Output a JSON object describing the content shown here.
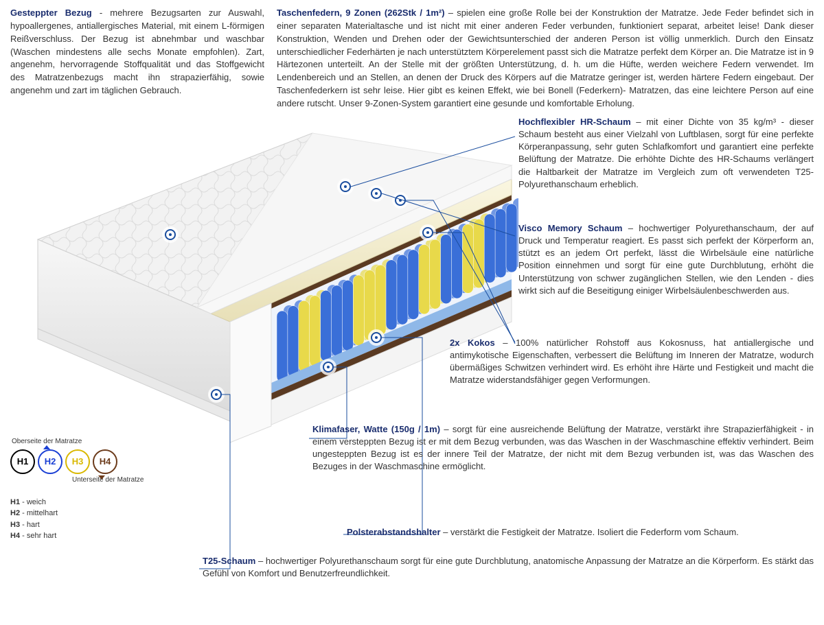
{
  "colors": {
    "heading": "#1a2d6e",
    "text": "#333333",
    "marker": "#1a4d9e",
    "h1": "#000000",
    "h2": "#1a3fd4",
    "h3": "#d9b800",
    "h4": "#6b3a1a",
    "spring_blue": "#3a6fd8",
    "spring_yellow": "#e8d94a",
    "foam_cream": "#f3edd0",
    "foam_blue": "#8fb8e8",
    "kokos": "#5a3a22",
    "cover": "#ececec"
  },
  "top": {
    "left": {
      "title": "Gesteppter Bezug",
      "sep": " - ",
      "body": "mehrere Bezugsarten zur Auswahl, hypoallergenes, antiallergisches Material, mit einem L-förmigen Reißverschluss. Der Bezug ist abnehmbar und waschbar (Waschen mindestens alle sechs Monate empfohlen). Zart, angenehm, hervorragende Stoffqualität und das Stoffgewicht des Matratzenbezugs macht ihn strapazierfähig, sowie angenehm und zart im täglichen Gebrauch."
    },
    "right": {
      "title": "Taschenfedern, 9 Zonen (262Stk / 1m²)",
      "sep": " – ",
      "body": "spielen eine große Rolle bei der Konstruktion der Matratze. Jede Feder befindet sich in einer separaten Materialtasche und ist nicht mit einer anderen Feder verbunden, funktioniert separat, arbeitet leise! Dank dieser Konstruktion, Wenden und Drehen oder der Gewichtsunterschied der anderen Person ist völlig unmerklich. Durch den Einsatz unterschiedlicher Federhärten je nach unterstütztem Körperelement passt sich die Matratze perfekt dem Körper an. Die Matratze ist in 9 Härtezonen unterteilt. An der Stelle mit der größten Unterstützung, d. h. um die Hüfte, werden weichere Federn verwendet. Im Lendenbereich und an Stellen, an denen der Druck des Körpers auf die Matratze geringer ist, werden härtere Federn eingebaut. Der Taschenfederkern ist sehr leise. Hier gibt es keinen Effekt, wie bei Bonell (Federkern)- Matratzen, das eine leichtere Person auf eine andere rutscht. Unser 9-Zonen-System garantiert eine gesunde und komfortable Erholung."
    }
  },
  "callouts": {
    "hr": {
      "title": "Hochflexibler HR-Schaum",
      "sep": " – ",
      "body": "mit einer Dichte von 35 kg/m³ - dieser Schaum besteht aus einer Vielzahl von Luftblasen, sorgt für eine perfekte Körperanpassung, sehr guten Schlafkomfort und garantiert eine perfekte Belüftung der Matratze. Die erhöhte Dichte des HR-Schaums verlängert die Haltbarkeit der Matratze im Vergleich zum oft verwendeten T25-Polyurethanschaum erheblich."
    },
    "visco": {
      "title": "Visco Memory Schaum",
      "sep": " – ",
      "body": "hochwertiger Polyurethanschaum, der auf Druck und Temperatur reagiert. Es passt sich perfekt der Körperform an, stützt es an jedem Ort perfekt, lässt die Wirbelsäule eine natürliche Position einnehmen und sorgt für eine gute Durchblutung, erhöht die Unterstützung von schwer zugänglichen Stellen, wie den Lenden - dies wirkt sich auf die Beseitigung einiger Wirbelsäulenbeschwerden aus."
    },
    "kokos": {
      "title": "2x Kokos",
      "sep": " – ",
      "body": "100% natürlicher Rohstoff aus Kokosnuss, hat antiallergische und antimykotische Eigenschaften, verbessert die Belüftung im Inneren der Matratze, wodurch übermäßiges Schwitzen verhindert wird. Es erhöht ihre Härte und Festigkeit und macht die Matratze widerstandsfähiger gegen Verformungen."
    },
    "klima": {
      "title": "Klimafaser, Watte (150g / 1m)",
      "sep": " – ",
      "body": "sorgt für eine ausreichende Belüftung der Matratze, verstärkt ihre Strapazierfähigkeit - in einem versteppten Bezug ist er mit dem Bezug verbunden, was das Waschen in der Waschmaschine effektiv verhindert. Beim ungesteppten Bezug ist es der innere Teil der Matratze, der nicht mit dem Bezug verbunden ist, was das Waschen des Bezuges in der Waschmaschine ermöglicht."
    },
    "polster": {
      "title": "Polsterabstandshalter",
      "sep": " – ",
      "body": "verstärkt die Festigkeit der Matratze. Isoliert die Federform vom Schaum."
    },
    "t25": {
      "title": "T25-Schaum",
      "sep": " – ",
      "body": "hochwertiger Polyurethanschaum sorgt für eine gute Durchblutung, anatomische Anpassung der Matratze an die Körperform. Es stärkt das Gefühl von Komfort und Benutzerfreundlichkeit."
    }
  },
  "legend": {
    "top_label": "Oberseite der Matratze",
    "bot_label": "Unterseite der Matratze",
    "items": [
      {
        "code": "H1",
        "label": "weich"
      },
      {
        "code": "H2",
        "label": "mittelhart"
      },
      {
        "code": "H3",
        "label": "hart"
      },
      {
        "code": "H4",
        "label": "sehr hart"
      }
    ]
  }
}
